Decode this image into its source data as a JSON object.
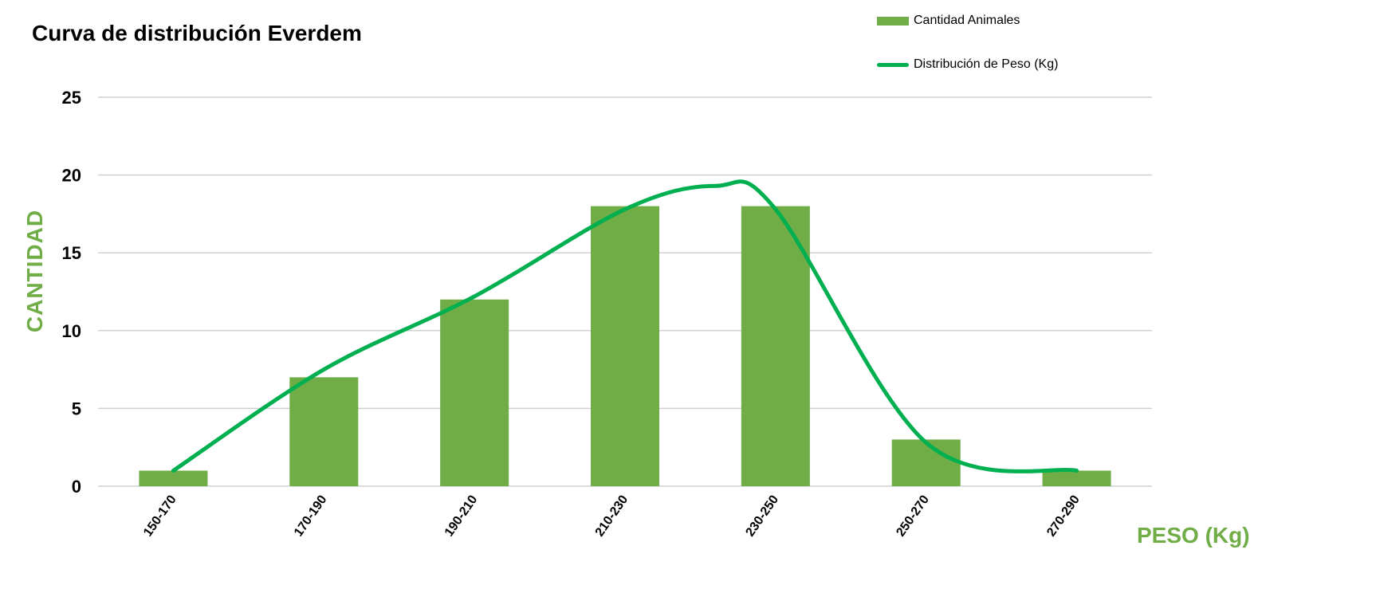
{
  "colors": {
    "bar": "#70ad47",
    "line": "#00b050",
    "grid": "#d0d0d0",
    "axis_title": "#70ad47"
  },
  "chart_data": {
    "type": "bar",
    "title": "Curva de distribución Everdem",
    "xlabel": "PESO (Kg)",
    "ylabel": "CANTIDAD",
    "ylim": [
      0,
      25
    ],
    "yticks": [
      "0",
      "5",
      "10",
      "15",
      "20",
      "25"
    ],
    "grid": true,
    "legend_position": "top-right",
    "categories": [
      "150-170",
      "170-190",
      "190-210",
      "210-230",
      "230-250",
      "250-270",
      "270-290"
    ],
    "series": [
      {
        "name": "Cantidad Animales",
        "type": "bar",
        "values": [
          1,
          7,
          12,
          18,
          18,
          3,
          1
        ]
      },
      {
        "name": "Distribución de Peso (Kg)",
        "type": "line",
        "smooth": true,
        "x": [
          0,
          1,
          2,
          3,
          3.6,
          4,
          5,
          6
        ],
        "values": [
          1,
          7.5,
          12.2,
          17.8,
          19.3,
          17.8,
          2.8,
          1
        ]
      }
    ]
  }
}
